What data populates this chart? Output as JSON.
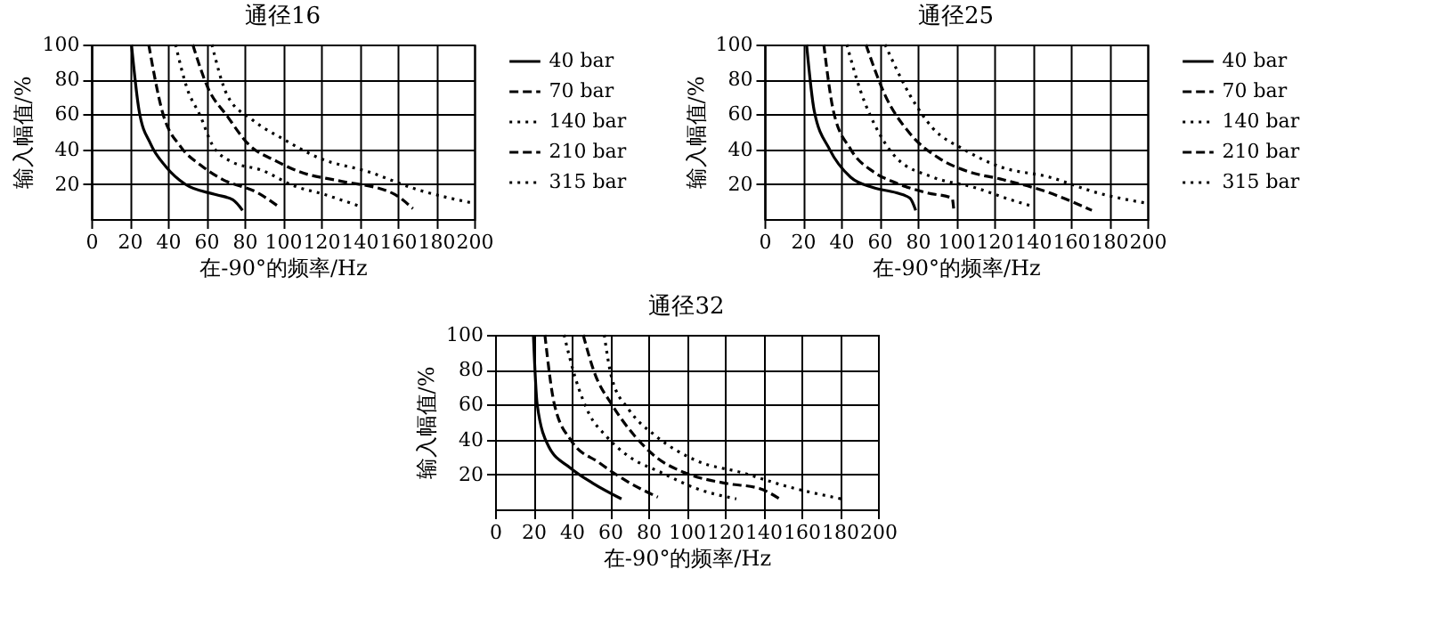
{
  "chart_data": [
    {
      "type": "line",
      "title": "通径16",
      "xlabel": "在-90°的频率/Hz",
      "ylabel": "输入幅值/%",
      "xlim": [
        0,
        200
      ],
      "ylim": [
        0,
        100
      ],
      "xticks": [
        0,
        20,
        40,
        60,
        80,
        100,
        120,
        140,
        160,
        180,
        200
      ],
      "yticks": [
        20,
        40,
        60,
        80,
        100
      ],
      "grid": true,
      "legend": "right",
      "series": [
        {
          "name": "40 bar",
          "color": "#000000",
          "line_style": "solid",
          "x": [
            21,
            25,
            31,
            39,
            49,
            65,
            74,
            79
          ],
          "values": [
            100,
            62,
            43,
            30,
            20,
            14,
            11,
            5
          ]
        },
        {
          "name": "70 bar",
          "color": "#000000",
          "line_style": "dashed",
          "x": [
            30,
            37,
            47,
            57,
            68,
            87,
            98
          ],
          "values": [
            100,
            62,
            41,
            31,
            23,
            15,
            7
          ]
        },
        {
          "name": "140 bar",
          "color": "#000000",
          "line_style": "dotted",
          "x": [
            44,
            50,
            57,
            63,
            73,
            89,
            106,
            122,
            141
          ],
          "values": [
            100,
            75,
            59,
            43,
            33,
            28,
            19,
            14,
            7
          ]
        },
        {
          "name": "210 bar",
          "color": "#000000",
          "line_style": "dashed",
          "x": [
            53,
            61,
            71,
            82,
            97,
            109,
            129,
            157,
            168
          ],
          "values": [
            100,
            75,
            59,
            43,
            33,
            27,
            22,
            15,
            6
          ]
        },
        {
          "name": "315 bar",
          "color": "#000000",
          "line_style": "dotted",
          "x": [
            63,
            71,
            84,
            100,
            119,
            145,
            170,
            200
          ],
          "values": [
            100,
            71,
            57,
            46,
            35,
            27,
            17,
            9
          ]
        }
      ]
    },
    {
      "type": "line",
      "title": "通径25",
      "xlabel": "在-90°的频率/Hz",
      "ylabel": "输入幅值/%",
      "xlim": [
        0,
        200
      ],
      "ylim": [
        0,
        100
      ],
      "xticks": [
        0,
        20,
        40,
        60,
        80,
        100,
        120,
        140,
        160,
        180,
        200
      ],
      "yticks": [
        20,
        40,
        60,
        80,
        100
      ],
      "grid": true,
      "legend": "right",
      "series": [
        {
          "name": "40 bar",
          "color": "#000000",
          "line_style": "solid",
          "x": [
            22,
            26,
            34,
            45,
            57,
            69,
            76,
            79
          ],
          "values": [
            100,
            62,
            40,
            24,
            18,
            15,
            12,
            5
          ]
        },
        {
          "name": "70 bar",
          "color": "#000000",
          "line_style": "dashed",
          "x": [
            31,
            36,
            45,
            57,
            68,
            85,
            98,
            99
          ],
          "values": [
            100,
            62,
            40,
            27,
            21,
            15,
            12,
            4
          ]
        },
        {
          "name": "140 bar",
          "color": "#000000",
          "line_style": "dotted",
          "x": [
            43,
            50,
            60,
            69,
            88,
            110,
            126,
            141
          ],
          "values": [
            100,
            74,
            49,
            35,
            24,
            18,
            12,
            7
          ]
        },
        {
          "name": "210 bar",
          "color": "#000000",
          "line_style": "dashed",
          "x": [
            53,
            63,
            76,
            91,
            107,
            123,
            149,
            171
          ],
          "values": [
            100,
            71,
            49,
            35,
            27,
            23,
            15,
            5
          ]
        },
        {
          "name": "315 bar",
          "color": "#000000",
          "line_style": "dotted",
          "x": [
            63,
            76,
            88,
            104,
            123,
            149,
            174,
            200
          ],
          "values": [
            100,
            71,
            52,
            40,
            30,
            24,
            15,
            9
          ]
        }
      ]
    },
    {
      "type": "line",
      "title": "通径32",
      "xlabel": "在-90°的频率/Hz",
      "ylabel": "输入幅值/%",
      "xlim": [
        0,
        200
      ],
      "ylim": [
        0,
        100
      ],
      "xticks": [
        0,
        20,
        40,
        60,
        80,
        100,
        120,
        140,
        160,
        180,
        200
      ],
      "yticks": [
        20,
        40,
        60,
        80,
        100
      ],
      "grid": true,
      "series": [
        {
          "color": "#000000",
          "line_style": "solid",
          "x": [
            20,
            22,
            28,
            39,
            51,
            66
          ],
          "values": [
            100,
            60,
            36,
            24,
            15,
            6
          ]
        },
        {
          "color": "#000000",
          "line_style": "dashed",
          "x": [
            26,
            31,
            40,
            54,
            69,
            85
          ],
          "values": [
            100,
            60,
            39,
            27,
            16,
            7
          ]
        },
        {
          "color": "#000000",
          "line_style": "dotted",
          "x": [
            36,
            42,
            49,
            58,
            69,
            87,
            105,
            126
          ],
          "values": [
            100,
            75,
            55,
            42,
            31,
            21,
            12,
            6
          ]
        },
        {
          "color": "#000000",
          "line_style": "dashed",
          "x": [
            46,
            52,
            61,
            73,
            84,
            99,
            120,
            138,
            150
          ],
          "values": [
            100,
            78,
            60,
            42,
            30,
            21,
            15,
            12,
            5
          ]
        },
        {
          "color": "#000000",
          "line_style": "dotted",
          "x": [
            57,
            61,
            70,
            84,
            105,
            129,
            153,
            181
          ],
          "values": [
            100,
            75,
            57,
            42,
            28,
            21,
            13,
            6
          ]
        }
      ]
    }
  ]
}
